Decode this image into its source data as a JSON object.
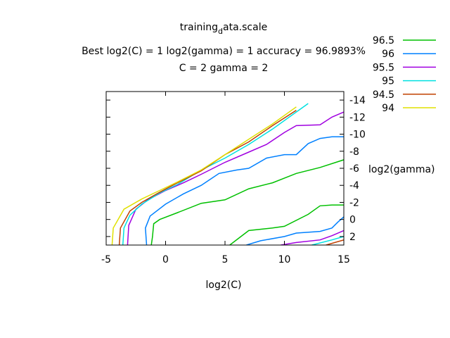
{
  "title": {
    "line1_main": "training",
    "line1_sub": "d",
    "line1_rest": "ata.scale",
    "line2": "Best log2(C) = 1  log2(gamma) = 1  accuracy = 96.9893%",
    "line3": "C = 2  gamma = 2"
  },
  "chart_data": {
    "type": "line",
    "subtype": "contour",
    "title": "training_data.scale / Best log2(C) = 1  log2(gamma) = 1  accuracy = 96.9893% / C = 2  gamma = 2",
    "xlabel": "log2(C)",
    "ylabel": "log2(gamma)",
    "xlim": [
      -5,
      15
    ],
    "ylim": [
      -15,
      3
    ],
    "y_reversed": true,
    "y_axis_position": "right",
    "x_ticks": [
      -5,
      0,
      5,
      10,
      15
    ],
    "x_tick_labels": [
      "-5",
      "0",
      "5",
      "10",
      "15"
    ],
    "y_ticks": [
      -14,
      -12,
      -10,
      -8,
      -6,
      -4,
      -2,
      0,
      2
    ],
    "y_tick_labels": [
      "-14",
      "-12",
      "-10",
      "-8",
      "-6",
      "-4",
      "-2",
      "0",
      "2"
    ],
    "legend_position": "top-right (outside plot)",
    "grid": false,
    "series": [
      {
        "name": "96.5",
        "color": "#00c000",
        "lines": [
          {
            "x": [
              -1.2,
              -1.1,
              -1.0,
              -0.5,
              1.0,
              3.0,
              5.0,
              7.0,
              9.0,
              11.0,
              13.0,
              15.0
            ],
            "y": [
              3.0,
              2.0,
              0.5,
              0.0,
              -0.8,
              -1.9,
              -2.3,
              -3.6,
              -4.3,
              -5.4,
              -6.1,
              -7.0
            ]
          },
          {
            "x": [
              5.4,
              7.0,
              9.0,
              10.0,
              12.0,
              13.0,
              14.0,
              15.0
            ],
            "y": [
              3.0,
              1.3,
              1.0,
              0.8,
              -0.6,
              -1.6,
              -1.7,
              -1.7
            ]
          }
        ]
      },
      {
        "name": "96",
        "color": "#0080ff",
        "lines": [
          {
            "x": [
              -1.6,
              -1.7,
              -1.3,
              0.0,
              1.5,
              3.0,
              4.5,
              6.0,
              7.0,
              8.5,
              10.0,
              11.0,
              12.0,
              13.0,
              14.0,
              15.0
            ],
            "y": [
              3.0,
              1.0,
              -0.4,
              -1.8,
              -3.0,
              -4.0,
              -5.4,
              -5.8,
              -6.0,
              -7.2,
              -7.6,
              -7.6,
              -8.9,
              -9.5,
              -9.7,
              -9.7
            ]
          },
          {
            "x": [
              6.8,
              8.0,
              10.0,
              11.0,
              13.0,
              14.0,
              14.5,
              15.0
            ],
            "y": [
              3.0,
              2.5,
              2.0,
              1.6,
              1.4,
              1.0,
              0.3,
              -0.3
            ]
          }
        ]
      },
      {
        "name": "95.5",
        "color": "#a000e0",
        "lines": [
          {
            "x": [
              -3.2,
              -3.1,
              -2.5,
              -1.5,
              0.0,
              1.5,
              3.0,
              5.0,
              7.0,
              8.5,
              10.0,
              11.0,
              13.0,
              14.0,
              15.0
            ],
            "y": [
              3.0,
              0.7,
              -1.2,
              -2.3,
              -3.4,
              -4.3,
              -5.3,
              -6.7,
              -7.9,
              -8.8,
              -10.2,
              -11.0,
              -11.1,
              -12.0,
              -12.6
            ]
          },
          {
            "x": [
              9.7,
              11.0,
              13.0,
              14.0,
              15.0
            ],
            "y": [
              3.0,
              2.7,
              2.4,
              1.9,
              1.3
            ]
          }
        ]
      },
      {
        "name": "95",
        "color": "#00e0e0",
        "lines": [
          {
            "x": [
              -3.6,
              -3.5,
              -3.0,
              -2.0,
              -0.5,
              1.0,
              3.0,
              5.0,
              7.0,
              9.0,
              10.5,
              12.0
            ],
            "y": [
              3.0,
              1.0,
              -0.5,
              -1.8,
              -3.1,
              -4.1,
              -5.8,
              -7.2,
              -8.8,
              -10.6,
              -12.1,
              -13.6
            ]
          },
          {
            "x": [
              12.3,
              14.0,
              15.0
            ],
            "y": [
              3.0,
              2.4,
              2.0
            ]
          }
        ]
      },
      {
        "name": "94.5",
        "color": "#c04000",
        "lines": [
          {
            "x": [
              -3.9,
              -3.8,
              -3.0,
              -2.0,
              -0.5,
              1.0,
              3.0,
              5.0,
              7.0,
              9.0,
              11.0
            ],
            "y": [
              3.0,
              1.0,
              -1.0,
              -2.0,
              -3.2,
              -4.3,
              -5.7,
              -7.6,
              -9.1,
              -11.0,
              -12.8
            ]
          },
          {
            "x": [
              13.5,
              15.0
            ],
            "y": [
              3.0,
              2.4
            ]
          }
        ]
      },
      {
        "name": "94",
        "color": "#e0e000",
        "lines": [
          {
            "x": [
              -4.5,
              -4.4,
              -3.5,
              -2.0,
              -0.5,
              1.0,
              3.0,
              5.0,
              7.0,
              9.0,
              11.0
            ],
            "y": [
              3.0,
              1.0,
              -1.2,
              -2.4,
              -3.4,
              -4.4,
              -5.8,
              -7.6,
              -9.4,
              -11.2,
              -13.2
            ]
          }
        ]
      }
    ]
  }
}
